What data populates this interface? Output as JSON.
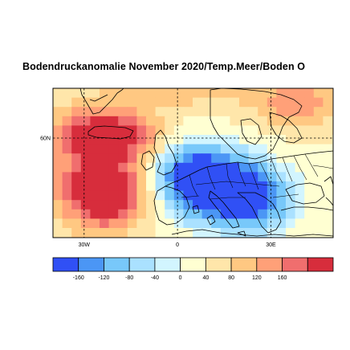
{
  "title": "Bodendruckanomalie November 2020/Temp.Meer/Boden O",
  "map": {
    "lat_labels": [
      {
        "text": "60N",
        "lat": 60
      }
    ],
    "lon_labels": [
      {
        "text": "30W",
        "lon": -30
      },
      {
        "text": "0",
        "lon": 0
      },
      {
        "text": "30E",
        "lon": 30
      }
    ],
    "lon_range": [
      -40,
      50
    ],
    "lat_range": [
      30,
      75
    ]
  },
  "colorbar": {
    "colors": [
      "#3050f5",
      "#4b96f5",
      "#78c8fa",
      "#aae1ff",
      "#d2f5ff",
      "#ffffd2",
      "#ffe6aa",
      "#ffc882",
      "#ffa078",
      "#f06e6e",
      "#d72d3c"
    ],
    "ticks": [
      "-160",
      "-120",
      "-80",
      "-40",
      "0",
      "40",
      "80",
      "120",
      "160"
    ]
  },
  "colors": {
    "land_outline": "#000000",
    "gridline": "#000000"
  }
}
